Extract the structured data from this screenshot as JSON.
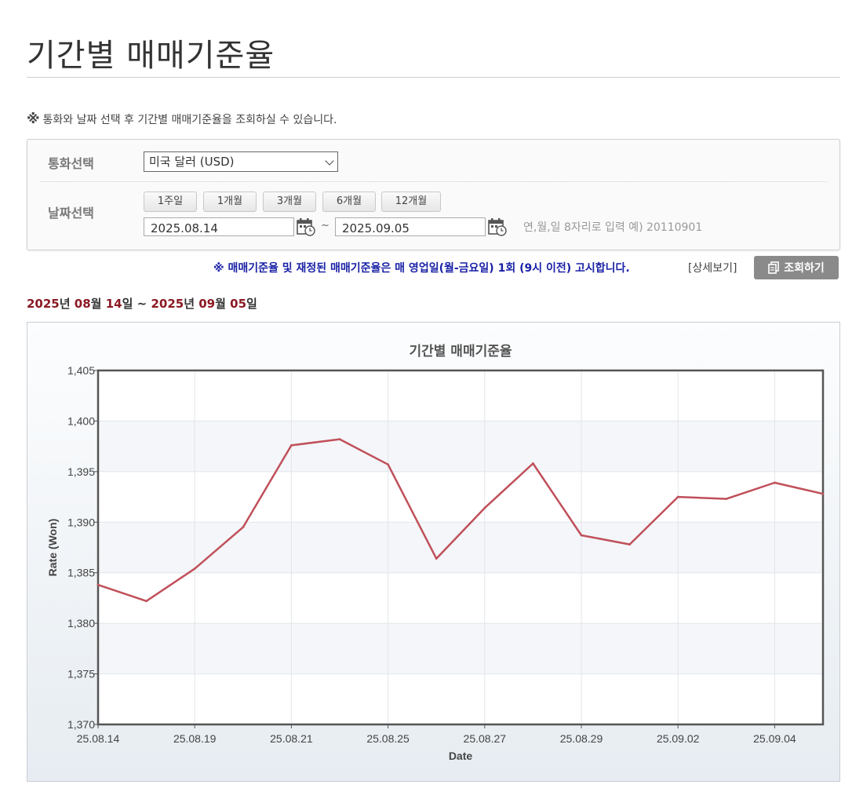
{
  "page": {
    "title": "기간별 매매기준율",
    "notice_mark": "※",
    "notice_text": "통화와 날짜 선택 후 기간별 매매기준율을 조회하실 수 있습니다."
  },
  "search": {
    "currency_label": "통화선택",
    "currency_value": "미국 달러 (USD)",
    "date_label": "날짜선택",
    "period_buttons": [
      "1주일",
      "1개월",
      "3개월",
      "6개월",
      "12개월"
    ],
    "start_date": "2025.08.14",
    "tilde": "~",
    "end_date": "2025.09.05",
    "hint": "연,월,일 8자리로 입력 예) 20110901"
  },
  "actions": {
    "announcement": "※ 매매기준율 및 재정된 매매기준율은 매 영업일(월-금요일) 1회 (9시 이전) 고시합니다.",
    "detail_link": "[상세보기]",
    "search_button": "조회하기"
  },
  "range": {
    "start_year": "2025",
    "start_month": "08",
    "start_day": "14",
    "end_year": "2025",
    "end_month": "09",
    "end_day": "05",
    "year_unit": "년",
    "month_unit": "월",
    "day_unit": "일",
    "separator": "~"
  },
  "colors": {
    "line": "#c0505a",
    "range_highlight": "#8b1a24",
    "announcement": "#1a22a6",
    "button_gray": "#8a8a8a"
  },
  "chart_data": {
    "type": "line",
    "title": "기간별 매매기준율",
    "xlabel": "Date",
    "ylabel": "Rate (Won)",
    "ylim": [
      1370,
      1405
    ],
    "yticks": [
      1370,
      1375,
      1380,
      1385,
      1390,
      1395,
      1400,
      1405
    ],
    "ytick_labels": [
      "1,370",
      "1,375",
      "1,380",
      "1,385",
      "1,390",
      "1,395",
      "1,400",
      "1,405"
    ],
    "xtick_labels": [
      "25.08.14",
      "25.08.19",
      "25.08.21",
      "25.08.25",
      "25.08.27",
      "25.08.29",
      "25.09.02",
      "25.09.04"
    ],
    "x": [
      "25.08.14",
      "25.08.18",
      "25.08.19",
      "25.08.20",
      "25.08.21",
      "25.08.22",
      "25.08.25",
      "25.08.26",
      "25.08.27",
      "25.08.28",
      "25.08.29",
      "25.09.01",
      "25.09.02",
      "25.09.03",
      "25.09.04",
      "25.09.05"
    ],
    "series": [
      {
        "values": [
          1383.8,
          1382.2,
          1385.4,
          1389.5,
          1397.6,
          1398.2,
          1395.7,
          1386.4,
          1391.4,
          1395.8,
          1388.7,
          1387.8,
          1392.5,
          1392.3,
          1393.9,
          1392.8
        ]
      }
    ],
    "grid": true
  }
}
